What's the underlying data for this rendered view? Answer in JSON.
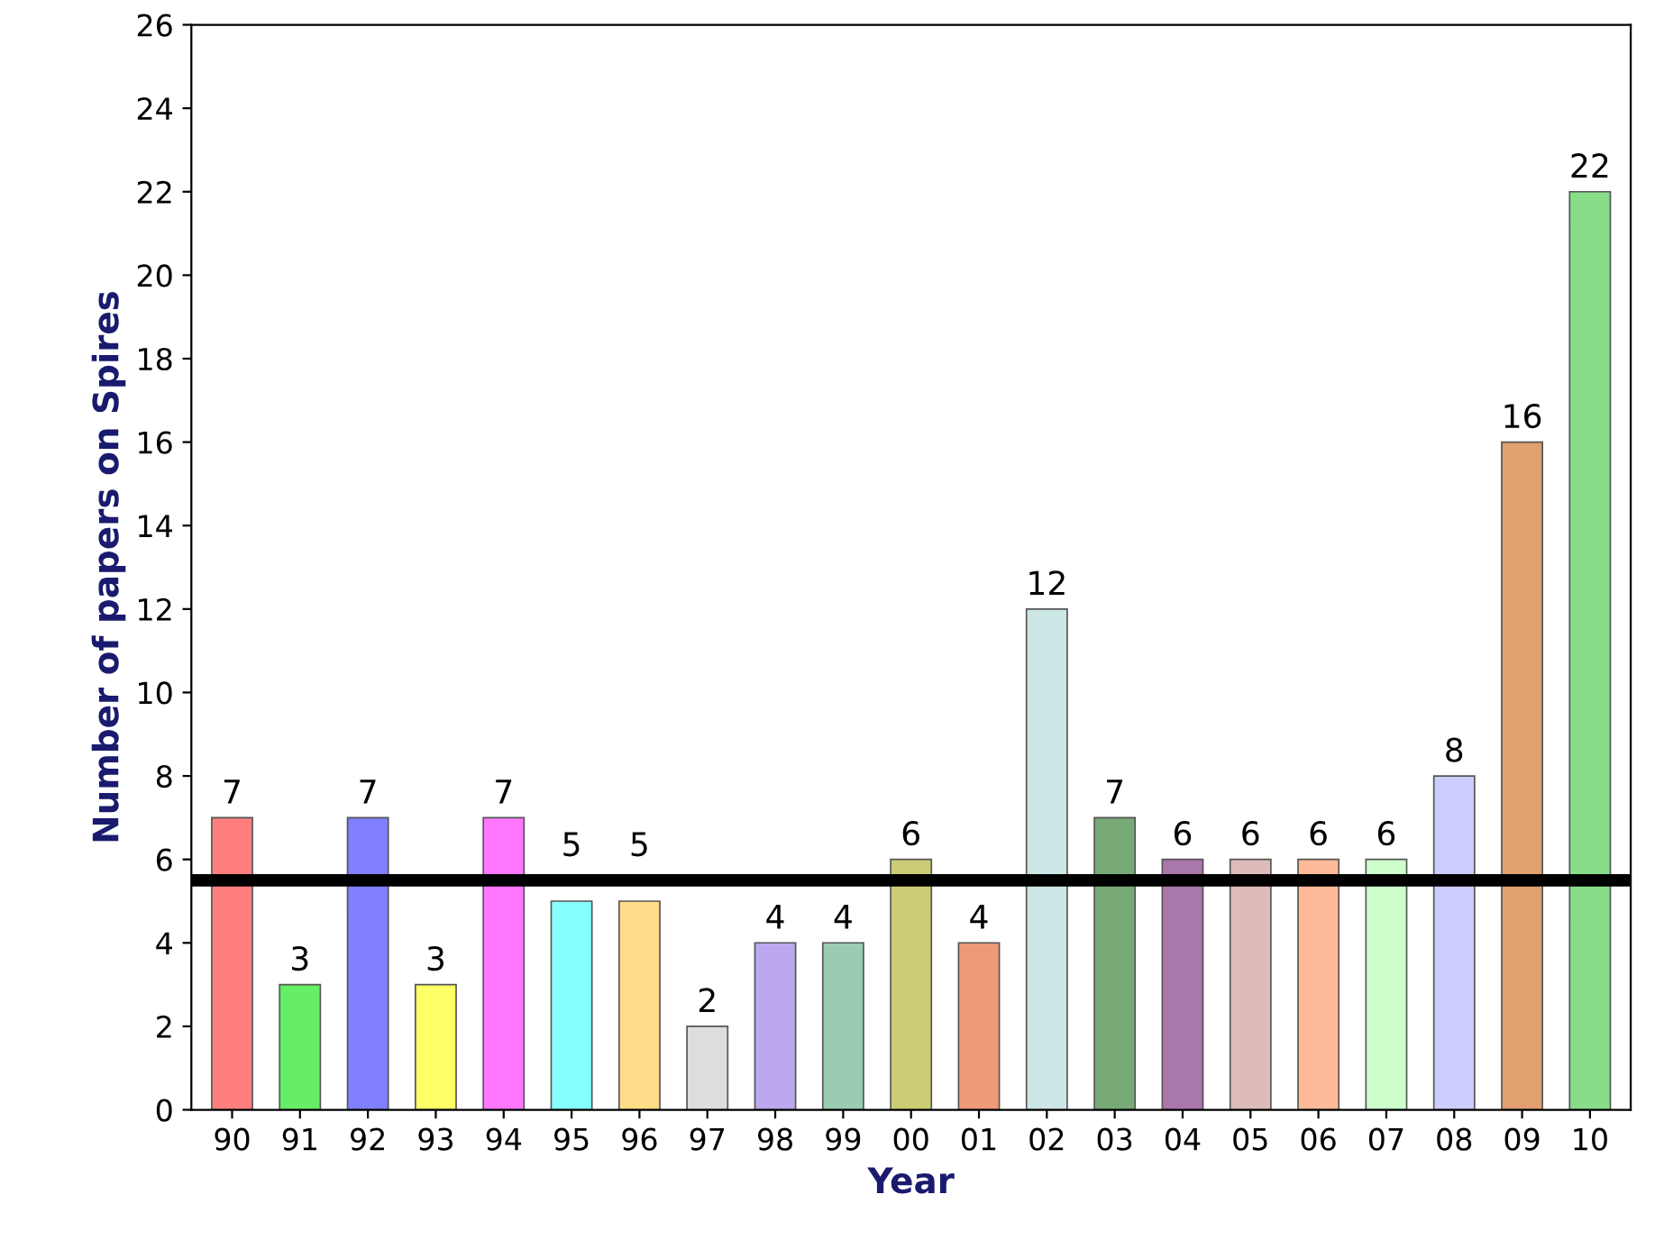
{
  "chart_data": {
    "type": "bar",
    "categories": [
      "90",
      "91",
      "92",
      "93",
      "94",
      "95",
      "96",
      "97",
      "98",
      "99",
      "00",
      "01",
      "02",
      "03",
      "04",
      "05",
      "06",
      "07",
      "08",
      "09",
      "10"
    ],
    "values": [
      7,
      3,
      7,
      3,
      7,
      5,
      5,
      2,
      4,
      4,
      6,
      4,
      12,
      7,
      6,
      6,
      6,
      6,
      8,
      16,
      22
    ],
    "colors": [
      "#ff7f7f",
      "#66ee66",
      "#7f7fff",
      "#ffff66",
      "#ff77ff",
      "#88ffff",
      "#ffdd88",
      "#dddddd",
      "#bba8ee",
      "#99ccb0",
      "#cccc77",
      "#ee9977",
      "#cce6e6",
      "#77aa77",
      "#aa77aa",
      "#ddbbbb",
      "#ffbb99",
      "#ccffcc",
      "#ccccff",
      "#e0a070",
      "#88dd88"
    ],
    "xlabel": "Year",
    "ylabel": "Number of papers on Spires",
    "ylim": [
      0,
      26
    ],
    "yticks": [
      0,
      2,
      4,
      6,
      8,
      10,
      12,
      14,
      16,
      18,
      20,
      22,
      24,
      26
    ],
    "data_labels": true,
    "grid": false,
    "legend": false,
    "ref_lines": [
      {
        "axis": "y",
        "value": 5.5,
        "color": "#000000"
      }
    ]
  }
}
